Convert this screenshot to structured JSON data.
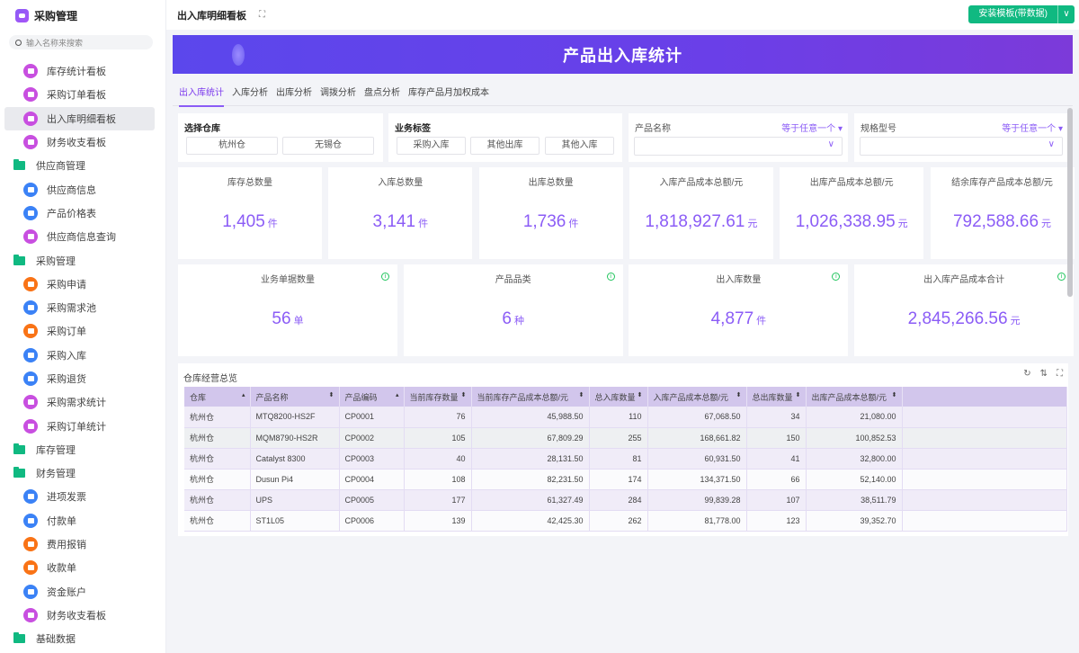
{
  "sidebar": {
    "title": "采购管理",
    "search_placeholder": "输入名称来搜索",
    "items": [
      {
        "label": "库存统计看板",
        "type": "sub",
        "icon": "dashboard-icon",
        "color": "#c84fe0"
      },
      {
        "label": "采购订单看板",
        "type": "sub",
        "icon": "dashboard-icon",
        "color": "#c84fe0"
      },
      {
        "label": "出入库明细看板",
        "type": "sub",
        "icon": "dashboard-icon",
        "color": "#c84fe0",
        "active": true
      },
      {
        "label": "财务收支看板",
        "type": "sub",
        "icon": "dashboard-icon",
        "color": "#c84fe0"
      },
      {
        "label": "供应商管理",
        "type": "grp",
        "icon": "folder-icon"
      },
      {
        "label": "供应商信息",
        "type": "sub",
        "icon": "user-icon",
        "color": "#3b82f6"
      },
      {
        "label": "产品价格表",
        "type": "sub",
        "icon": "document-icon",
        "color": "#3b82f6"
      },
      {
        "label": "供应商信息查询",
        "type": "sub",
        "icon": "dashboard-icon",
        "color": "#c84fe0"
      },
      {
        "label": "采购管理",
        "type": "grp",
        "icon": "folder-icon"
      },
      {
        "label": "采购申请",
        "type": "sub",
        "icon": "form-icon",
        "color": "#f97316"
      },
      {
        "label": "采购需求池",
        "type": "sub",
        "icon": "document-icon",
        "color": "#3b82f6"
      },
      {
        "label": "采购订单",
        "type": "sub",
        "icon": "form-icon",
        "color": "#f97316"
      },
      {
        "label": "采购入库",
        "type": "sub",
        "icon": "document-icon",
        "color": "#3b82f6"
      },
      {
        "label": "采购退货",
        "type": "sub",
        "icon": "document-icon",
        "color": "#3b82f6"
      },
      {
        "label": "采购需求统计",
        "type": "sub",
        "icon": "bar-chart-icon",
        "color": "#c84fe0"
      },
      {
        "label": "采购订单统计",
        "type": "sub",
        "icon": "bar-chart-icon",
        "color": "#c84fe0"
      },
      {
        "label": "库存管理",
        "type": "grp",
        "icon": "folder-icon"
      },
      {
        "label": "财务管理",
        "type": "grp",
        "icon": "folder-icon"
      },
      {
        "label": "进项发票",
        "type": "sub",
        "icon": "document-icon",
        "color": "#3b82f6"
      },
      {
        "label": "付款单",
        "type": "sub",
        "icon": "document-icon",
        "color": "#3b82f6"
      },
      {
        "label": "费用报销",
        "type": "sub",
        "icon": "wallet-icon",
        "color": "#f97316"
      },
      {
        "label": "收款单",
        "type": "sub",
        "icon": "form-icon",
        "color": "#f97316"
      },
      {
        "label": "资金账户",
        "type": "sub",
        "icon": "document-icon",
        "color": "#3b82f6"
      },
      {
        "label": "财务收支看板",
        "type": "sub",
        "icon": "dashboard-icon",
        "color": "#c84fe0"
      },
      {
        "label": "基础数据",
        "type": "grp",
        "icon": "folder-icon"
      }
    ]
  },
  "topbar": {
    "title": "出入库明细看板",
    "install_label": "安装模板(带数据)"
  },
  "banner": {
    "title": "产品出入库统计"
  },
  "tabs": [
    "出入库统计",
    "入库分析",
    "出库分析",
    "调拨分析",
    "盘点分析",
    "库存产品月加权成本"
  ],
  "filters": {
    "warehouse": {
      "label": "选择仓库",
      "options": [
        "杭州仓",
        "无锡仓"
      ]
    },
    "biz_tag": {
      "label": "业务标签",
      "options": [
        "采购入库",
        "其他出库",
        "其他入库"
      ]
    },
    "product_name": {
      "label": "产品名称",
      "operator": "等于任意一个"
    },
    "spec": {
      "label": "规格型号",
      "operator": "等于任意一个"
    }
  },
  "stats_row1": [
    {
      "title": "库存总数量",
      "value": "1,405",
      "unit": "件"
    },
    {
      "title": "入库总数量",
      "value": "3,141",
      "unit": "件"
    },
    {
      "title": "出库总数量",
      "value": "1,736",
      "unit": "件"
    },
    {
      "title": "入库产品成本总额/元",
      "value": "1,818,927.61",
      "unit": "元"
    },
    {
      "title": "出库产品成本总额/元",
      "value": "1,026,338.95",
      "unit": "元"
    },
    {
      "title": "结余库存产品成本总额/元",
      "value": "792,588.66",
      "unit": "元"
    }
  ],
  "stats_row2": [
    {
      "title": "业务单据数量",
      "value": "56",
      "unit": "单"
    },
    {
      "title": "产品品类",
      "value": "6",
      "unit": "种"
    },
    {
      "title": "出入库数量",
      "value": "4,877",
      "unit": "件"
    },
    {
      "title": "出入库产品成本合计",
      "value": "2,845,266.56",
      "unit": "元"
    }
  ],
  "table": {
    "title": "仓库经营总览",
    "columns": [
      "仓库",
      "产品名称",
      "产品编码",
      "当前库存数量",
      "当前库存产品成本总额/元",
      "总入库数量",
      "入库产品成本总额/元",
      "总出库数量",
      "出库产品成本总额/元"
    ],
    "rows": [
      [
        "杭州仓",
        "MTQ8200-HS2F",
        "CP0001",
        "76",
        "45,988.50",
        "110",
        "67,068.50",
        "34",
        "21,080.00"
      ],
      [
        "杭州仓",
        "MQM8790-HS2R",
        "CP0002",
        "105",
        "67,809.29",
        "255",
        "168,661.82",
        "150",
        "100,852.53"
      ],
      [
        "杭州仓",
        "Catalyst 8300",
        "CP0003",
        "40",
        "28,131.50",
        "81",
        "60,931.50",
        "41",
        "32,800.00"
      ],
      [
        "杭州仓",
        "Dusun Pi4",
        "CP0004",
        "108",
        "82,231.50",
        "174",
        "134,371.50",
        "66",
        "52,140.00"
      ],
      [
        "杭州仓",
        "UPS",
        "CP0005",
        "177",
        "61,327.49",
        "284",
        "99,839.28",
        "107",
        "38,511.79"
      ],
      [
        "杭州仓",
        "ST1L05",
        "CP0006",
        "139",
        "42,425.30",
        "262",
        "81,778.00",
        "123",
        "39,352.70"
      ]
    ]
  }
}
